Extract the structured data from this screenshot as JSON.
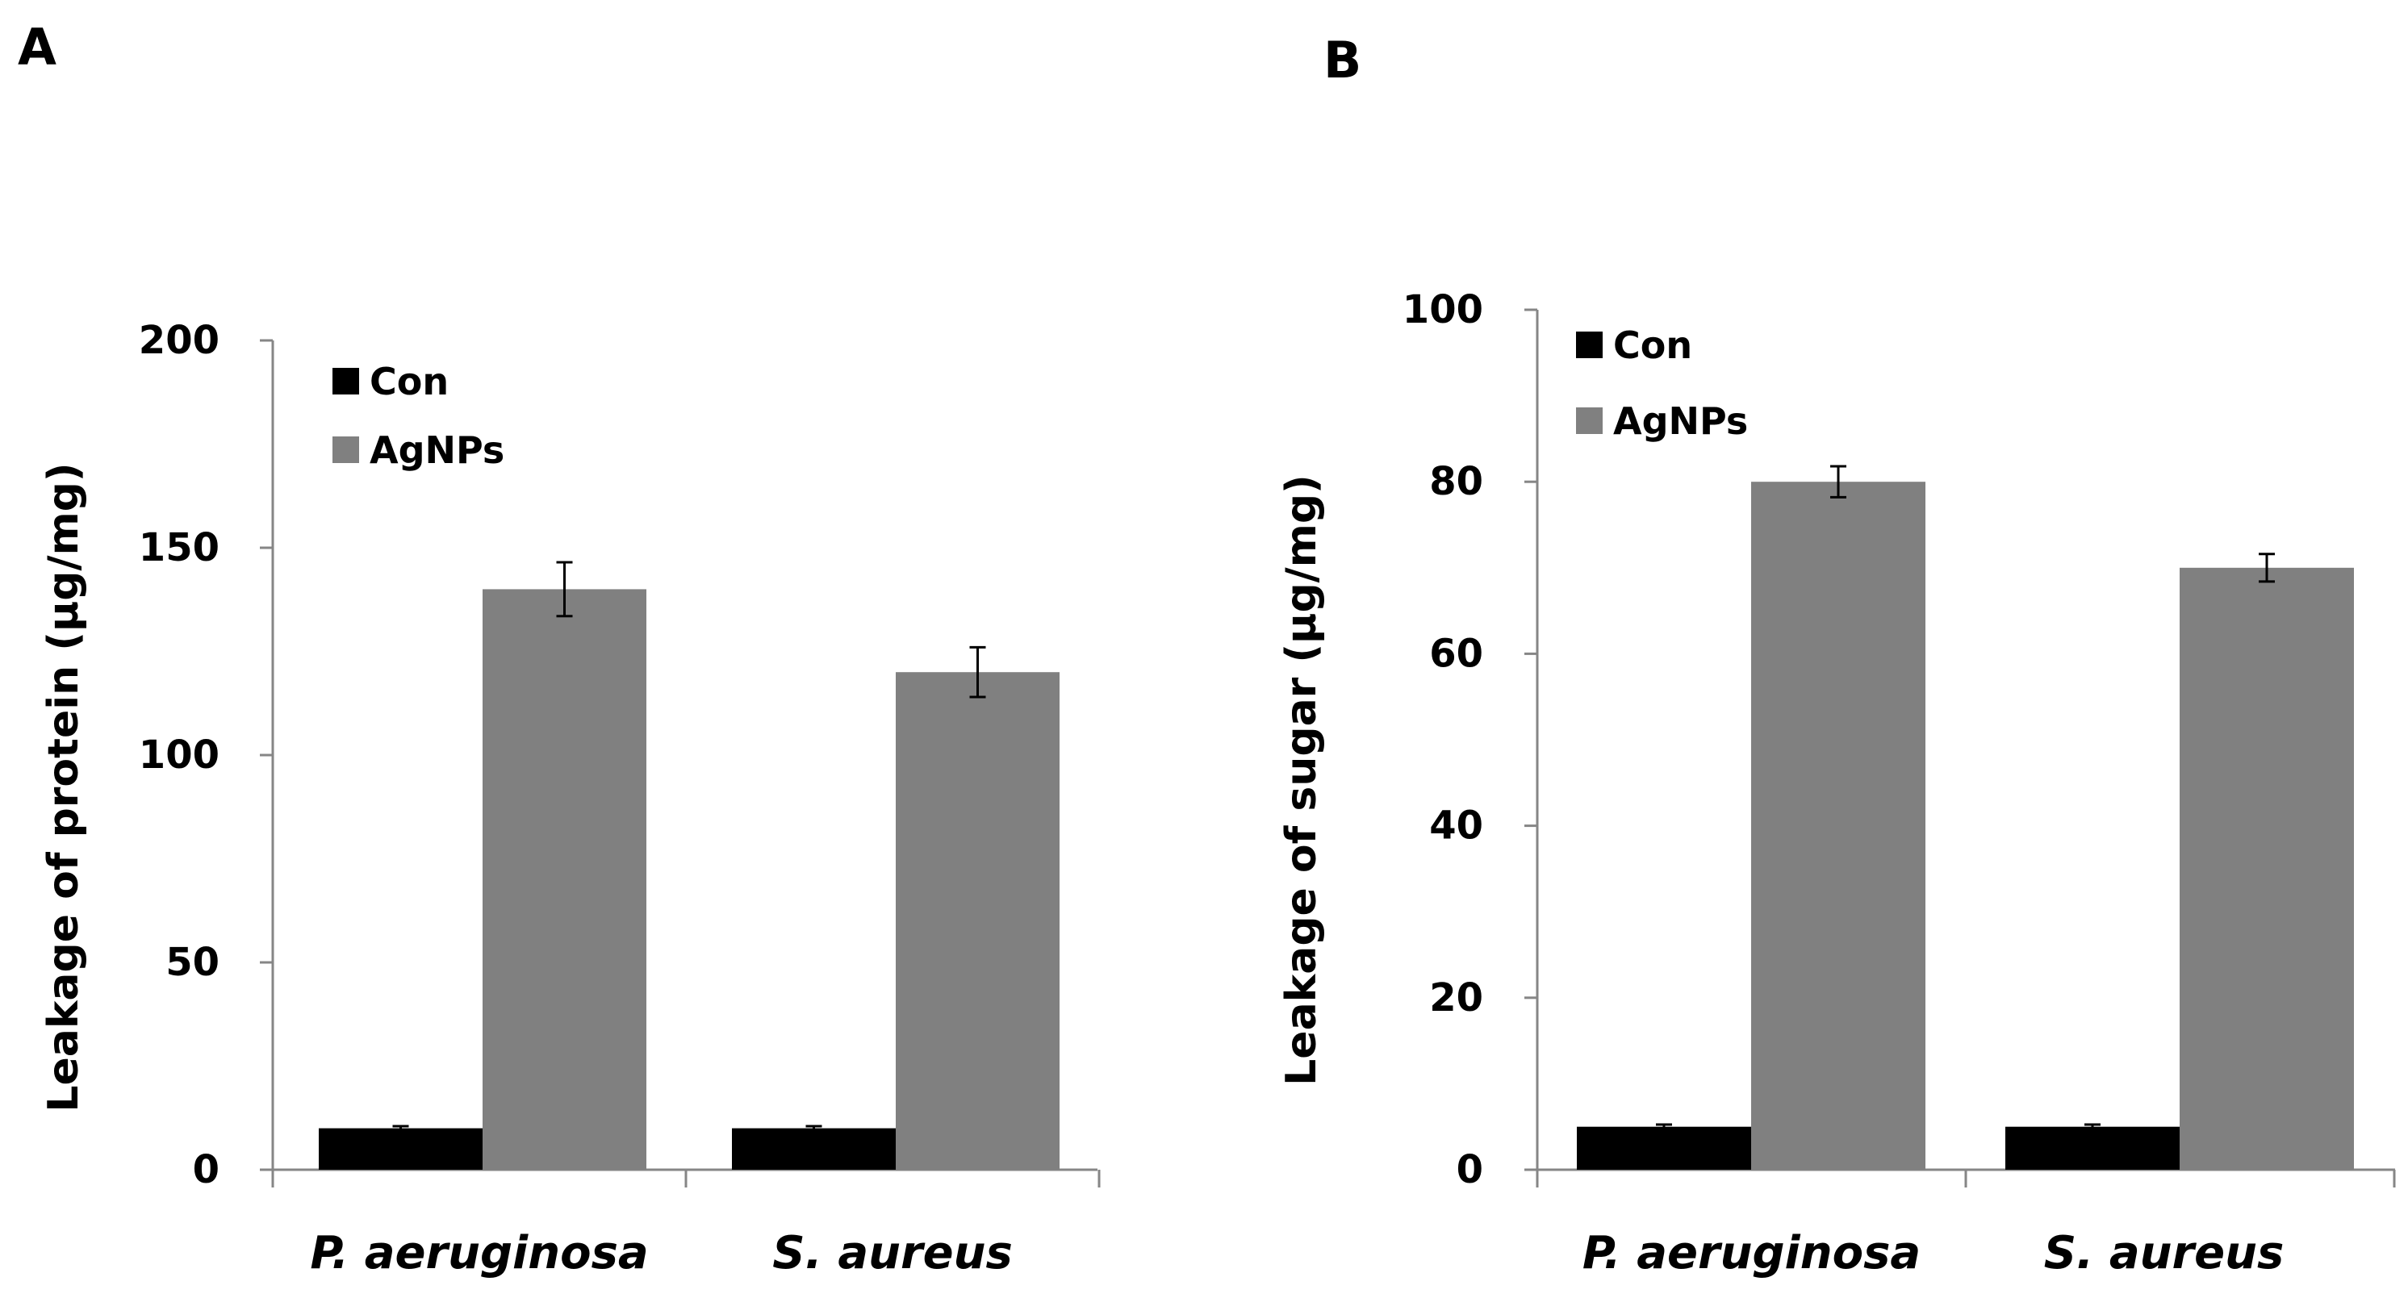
{
  "chart_data": [
    {
      "panel_label": "A",
      "type": "bar",
      "categories": [
        "P. aeruginosa",
        "S. aureus"
      ],
      "series": [
        {
          "name": "Con",
          "color": "#000000",
          "values": [
            10,
            10
          ],
          "errors": [
            0.5,
            0.5
          ]
        },
        {
          "name": "AgNPs",
          "color": "#808080",
          "values": [
            140,
            120
          ],
          "errors": [
            6.5,
            6
          ]
        }
      ],
      "ylabel": "Leakage of protein (μg/mg)",
      "xlabel": "",
      "ylim": [
        0,
        200
      ],
      "yticks": [
        "0",
        "50",
        "100",
        "150",
        "200"
      ],
      "legend_position": "top-left",
      "grid": false
    },
    {
      "panel_label": "B",
      "type": "bar",
      "categories": [
        "P. aeruginosa",
        "S. aureus"
      ],
      "series": [
        {
          "name": "Con",
          "color": "#000000",
          "values": [
            5,
            5
          ],
          "errors": [
            0.25,
            0.25
          ]
        },
        {
          "name": "AgNPs",
          "color": "#808080",
          "values": [
            80,
            70
          ],
          "errors": [
            1.8,
            1.6
          ]
        }
      ],
      "ylabel": "Leakage of sugar (μg/mg)",
      "xlabel": "",
      "ylim": [
        0,
        100
      ],
      "yticks": [
        "0",
        "20",
        "40",
        "60",
        "80",
        "100"
      ],
      "legend_position": "top-left",
      "grid": false
    }
  ]
}
